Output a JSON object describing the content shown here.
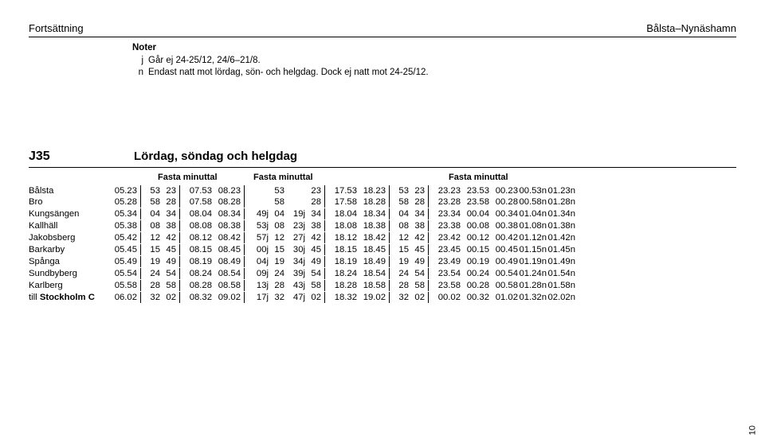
{
  "header": {
    "left": "Fortsättning",
    "right": "Bålsta–Nynäshamn"
  },
  "notes": {
    "title": "Noter",
    "items": [
      {
        "key": "j",
        "text": "Går ej 24-25/12, 24/6–21/8."
      },
      {
        "key": "n",
        "text": "Endast natt mot lördag, sön- och helgdag. Dock ej natt mot 24-25/12."
      }
    ]
  },
  "section": {
    "code": "J35",
    "desc": "Lördag, söndag och helgdag"
  },
  "minuttal_label": "Fasta minuttal",
  "stations": [
    "Bålsta",
    "Bro",
    "Kungsängen",
    "Kallhäll",
    "Jakobsberg",
    "Barkarby",
    "Spånga",
    "Sundbyberg",
    "Karlberg",
    "till Stockholm C"
  ],
  "cols": {
    "c0": [
      "05.23",
      "05.28",
      "05.34",
      "05.38",
      "05.42",
      "05.45",
      "05.49",
      "05.54",
      "05.58",
      "06.02"
    ],
    "a1": [
      "53",
      "58",
      "04",
      "08",
      "12",
      "15",
      "19",
      "24",
      "28",
      "32"
    ],
    "a2": [
      "23",
      "28",
      "34",
      "38",
      "42",
      "45",
      "49",
      "54",
      "58",
      "02"
    ],
    "c1": [
      "07.53",
      "07.58",
      "08.04",
      "08.08",
      "08.12",
      "08.15",
      "08.19",
      "08.24",
      "08.28",
      "08.32"
    ],
    "c2": [
      "08.23",
      "08.28",
      "08.34",
      "08.38",
      "08.42",
      "08.45",
      "08.49",
      "08.54",
      "08.58",
      "09.02"
    ],
    "m1": [
      "",
      "",
      "49j",
      "53j",
      "57j",
      "00j",
      "04j",
      "09j",
      "13j",
      "17j"
    ],
    "m2": [
      "53",
      "58",
      "04",
      "08",
      "12",
      "15",
      "19",
      "24",
      "28",
      "32"
    ],
    "m3": [
      "",
      "",
      "19j",
      "23j",
      "27j",
      "30j",
      "34j",
      "39j",
      "43j",
      "47j"
    ],
    "m4": [
      "23",
      "28",
      "34",
      "38",
      "42",
      "45",
      "49",
      "54",
      "58",
      "02"
    ],
    "c3": [
      "17.53",
      "17.58",
      "18.04",
      "18.08",
      "18.12",
      "18.15",
      "18.19",
      "18.24",
      "18.28",
      "18.32"
    ],
    "c4": [
      "18.23",
      "18.28",
      "18.34",
      "18.38",
      "18.42",
      "18.45",
      "18.49",
      "18.54",
      "18.58",
      "19.02"
    ],
    "b1": [
      "53",
      "58",
      "04",
      "08",
      "12",
      "15",
      "19",
      "24",
      "28",
      "32"
    ],
    "b2": [
      "23",
      "28",
      "34",
      "38",
      "42",
      "45",
      "49",
      "54",
      "58",
      "02"
    ],
    "c5": [
      "23.23",
      "23.28",
      "23.34",
      "23.38",
      "23.42",
      "23.45",
      "23.49",
      "23.54",
      "23.58",
      "00.02"
    ],
    "c6": [
      "23.53",
      "23.58",
      "00.04",
      "00.08",
      "00.12",
      "00.15",
      "00.19",
      "00.24",
      "00.28",
      "00.32"
    ],
    "c7": [
      "00.23",
      "00.28",
      "00.34",
      "00.38",
      "00.42",
      "00.45",
      "00.49",
      "00.54",
      "00.58",
      "01.02"
    ],
    "c8": [
      "00.53n",
      "00.58n",
      "01.04n",
      "01.08n",
      "01.12n",
      "01.15n",
      "01.19n",
      "01.24n",
      "01.28n",
      "01.32n"
    ],
    "c9": [
      "01.23n",
      "01.28n",
      "01.34n",
      "01.38n",
      "01.42n",
      "01.45n",
      "01.49n",
      "01.54n",
      "01.58n",
      "02.02n"
    ]
  },
  "page": "10"
}
